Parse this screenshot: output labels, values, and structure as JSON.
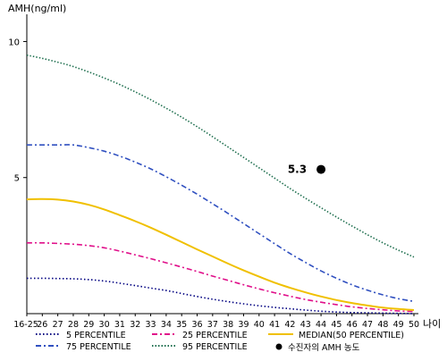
{
  "chart_data": {
    "type": "line",
    "ylabel": "AMH(ng/ml)",
    "xlabel": "나이",
    "x_labels": [
      "16-25",
      "26",
      "27",
      "28",
      "29",
      "30",
      "31",
      "32",
      "33",
      "34",
      "35",
      "36",
      "37",
      "38",
      "39",
      "40",
      "41",
      "42",
      "43",
      "44",
      "45",
      "46",
      "47",
      "48",
      "49",
      "50"
    ],
    "x": [
      25,
      26,
      27,
      28,
      29,
      30,
      31,
      32,
      33,
      34,
      35,
      36,
      37,
      38,
      39,
      40,
      41,
      42,
      43,
      44,
      45,
      46,
      47,
      48,
      49,
      50
    ],
    "y_ticks": [
      5,
      10
    ],
    "ylim": [
      0,
      11
    ],
    "grid": false,
    "legend_position": "bottom",
    "series": [
      {
        "name": "5 PERCENTILE",
        "color": "#000080",
        "dash": "1.5 2.5",
        "values": [
          1.3,
          1.3,
          1.29,
          1.28,
          1.25,
          1.2,
          1.12,
          1.03,
          0.94,
          0.85,
          0.74,
          0.63,
          0.53,
          0.44,
          0.36,
          0.29,
          0.23,
          0.18,
          0.13,
          0.09,
          0.06,
          0.04,
          0.03,
          0.02,
          0.01,
          0.0
        ]
      },
      {
        "name": "25 PERCENTILE",
        "color": "#e0108a",
        "dash": "6 3 2 3",
        "values": [
          2.6,
          2.6,
          2.58,
          2.55,
          2.5,
          2.42,
          2.3,
          2.16,
          2.02,
          1.87,
          1.71,
          1.55,
          1.38,
          1.22,
          1.06,
          0.91,
          0.77,
          0.64,
          0.52,
          0.42,
          0.33,
          0.25,
          0.19,
          0.14,
          0.1,
          0.08
        ]
      },
      {
        "name": "MEDIAN(50 PERCENTILE)",
        "color": "#f0c000",
        "dash": "",
        "values": [
          4.2,
          4.21,
          4.19,
          4.12,
          4.0,
          3.83,
          3.62,
          3.4,
          3.16,
          2.9,
          2.63,
          2.36,
          2.1,
          1.84,
          1.59,
          1.36,
          1.14,
          0.95,
          0.78,
          0.63,
          0.5,
          0.39,
          0.3,
          0.22,
          0.17,
          0.13
        ]
      },
      {
        "name": "75 PERCENTILE",
        "color": "#3050c0",
        "dash": "6 3 2 3",
        "values": [
          6.2,
          6.2,
          6.2,
          6.2,
          6.1,
          5.97,
          5.79,
          5.57,
          5.32,
          5.03,
          4.72,
          4.39,
          4.04,
          3.68,
          3.31,
          2.94,
          2.57,
          2.21,
          1.88,
          1.57,
          1.3,
          1.06,
          0.86,
          0.69,
          0.55,
          0.45
        ]
      },
      {
        "name": "95 PERCENTILE",
        "color": "#207050",
        "dash": "1.5 2",
        "values": [
          9.5,
          9.38,
          9.24,
          9.08,
          8.88,
          8.66,
          8.42,
          8.15,
          7.86,
          7.55,
          7.22,
          6.87,
          6.5,
          6.12,
          5.74,
          5.36,
          4.98,
          4.6,
          4.24,
          3.89,
          3.55,
          3.22,
          2.9,
          2.6,
          2.33,
          2.08
        ]
      }
    ],
    "annotation": {
      "label": "5.3",
      "x": 44,
      "y": 5.3,
      "legend": "수진자의 AMH 농도"
    }
  }
}
